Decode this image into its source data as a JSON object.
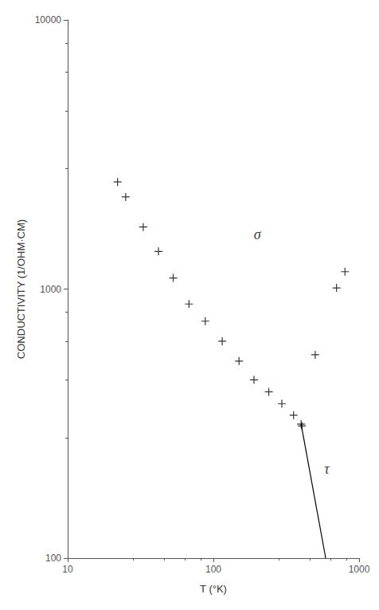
{
  "chart_data": {
    "type": "scatter",
    "xlabel": "T (°K)",
    "ylabel": "CONDUCTIVITY (1/OHM·CM)",
    "log": true,
    "grid": false,
    "xlim": [
      10,
      1000
    ],
    "xticks": [
      10,
      100,
      1000
    ],
    "ylim": [
      100,
      10000
    ],
    "yticks": [
      100,
      1000,
      10000
    ],
    "series": [
      {
        "type": "scatter",
        "marker": "+",
        "color": "black",
        "x": [
          22,
          25,
          33,
          42,
          53,
          68,
          88,
          115,
          150,
          190,
          240,
          295,
          355,
          400,
          405,
          500,
          700,
          800
        ],
        "values": [
          2500,
          2200,
          1700,
          1380,
          1100,
          880,
          760,
          640,
          540,
          460,
          415,
          375,
          340,
          315,
          310,
          570,
          1010,
          1160
        ]
      },
      {
        "type": "line",
        "color": "black",
        "x": [
          400,
          590
        ],
        "values": [
          315,
          100
        ]
      }
    ],
    "annotations": [
      {
        "text": "σ",
        "x": 200,
        "y": 1600
      },
      {
        "text": "τ",
        "x": 600,
        "y": 215
      }
    ]
  }
}
